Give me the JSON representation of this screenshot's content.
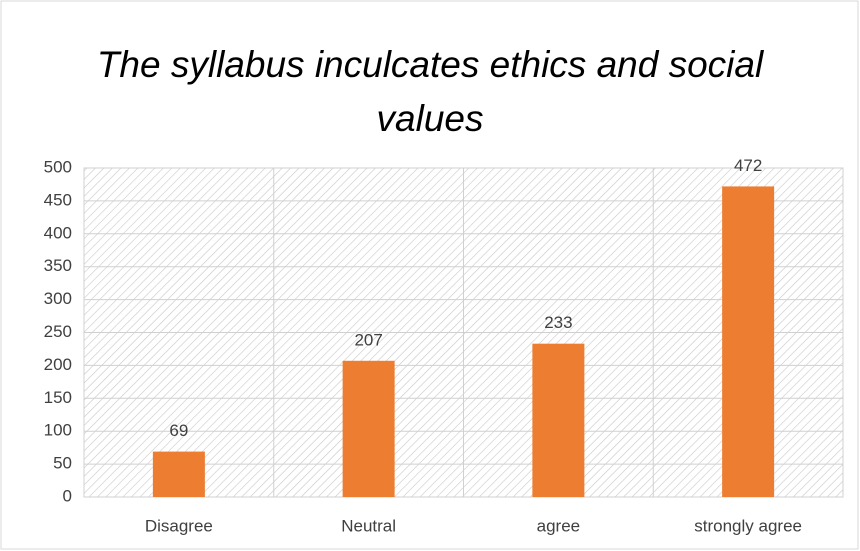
{
  "chart_data": {
    "type": "bar",
    "title": "The syllabus inculcates ethics and social values",
    "categories": [
      "Disagree",
      "Neutral",
      "agree",
      "strongly agree"
    ],
    "values": [
      69,
      207,
      233,
      472
    ],
    "color": "#ed7d31",
    "ylim": [
      0,
      500
    ],
    "yticks": [
      0,
      50,
      100,
      150,
      200,
      250,
      300,
      350,
      400,
      450,
      500
    ],
    "grid": true
  }
}
